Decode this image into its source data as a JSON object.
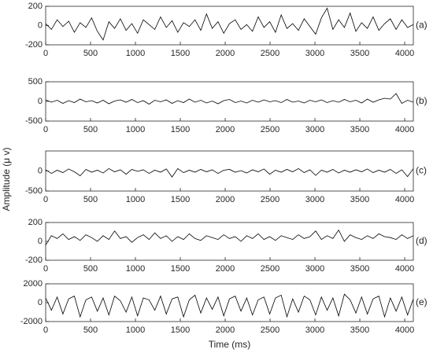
{
  "chart_data": [
    {
      "type": "line",
      "label": "(a)",
      "color": "#000000",
      "x": [
        0,
        64,
        128,
        192,
        256,
        320,
        384,
        448,
        512,
        576,
        640,
        704,
        768,
        832,
        896,
        960,
        1024,
        1088,
        1152,
        1216,
        1280,
        1344,
        1408,
        1472,
        1536,
        1600,
        1664,
        1728,
        1792,
        1856,
        1920,
        1984,
        2048,
        2112,
        2176,
        2240,
        2304,
        2368,
        2432,
        2496,
        2560,
        2624,
        2688,
        2752,
        2816,
        2880,
        2944,
        3008,
        3072,
        3136,
        3200,
        3264,
        3328,
        3392,
        3456,
        3520,
        3584,
        3648,
        3712,
        3776,
        3840,
        3904,
        3968,
        4032,
        4096
      ],
      "values": [
        20,
        -40,
        60,
        -10,
        45,
        -70,
        30,
        -20,
        80,
        -60,
        -150,
        40,
        -30,
        70,
        -50,
        20,
        -80,
        60,
        10,
        -40,
        90,
        -20,
        50,
        -70,
        30,
        -10,
        60,
        -50,
        120,
        -30,
        40,
        -80,
        20,
        60,
        -40,
        10,
        -60,
        90,
        -20,
        40,
        -70,
        110,
        -30,
        20,
        -50,
        70,
        -10,
        -90,
        80,
        180,
        -40,
        60,
        -20,
        130,
        -60,
        30,
        -30,
        90,
        -50,
        20,
        70,
        -40,
        60,
        -20,
        10
      ],
      "xlim": [
        0,
        4096
      ],
      "xticks": [
        0,
        500,
        1000,
        1500,
        2000,
        2500,
        3000,
        3500,
        4000
      ],
      "ylim": [
        -200,
        200
      ],
      "yticks": [
        -200,
        0,
        200
      ]
    },
    {
      "type": "line",
      "label": "(b)",
      "color": "#000000",
      "x": [
        0,
        64,
        128,
        192,
        256,
        320,
        384,
        448,
        512,
        576,
        640,
        704,
        768,
        832,
        896,
        960,
        1024,
        1088,
        1152,
        1216,
        1280,
        1344,
        1408,
        1472,
        1536,
        1600,
        1664,
        1728,
        1792,
        1856,
        1920,
        1984,
        2048,
        2112,
        2176,
        2240,
        2304,
        2368,
        2432,
        2496,
        2560,
        2624,
        2688,
        2752,
        2816,
        2880,
        2944,
        3008,
        3072,
        3136,
        3200,
        3264,
        3328,
        3392,
        3456,
        3520,
        3584,
        3648,
        3712,
        3776,
        3840,
        3904,
        3968,
        4032,
        4096
      ],
      "values": [
        40,
        -20,
        30,
        -50,
        20,
        -30,
        60,
        -10,
        20,
        -40,
        30,
        -60,
        10,
        40,
        -20,
        50,
        -30,
        20,
        -70,
        30,
        -10,
        40,
        -50,
        20,
        -30,
        60,
        -20,
        30,
        -40,
        10,
        -60,
        20,
        50,
        -30,
        10,
        -40,
        30,
        -20,
        40,
        -10,
        20,
        -30,
        50,
        -20,
        10,
        -40,
        30,
        -10,
        40,
        -30,
        20,
        -20,
        50,
        -10,
        30,
        -40,
        60,
        -20,
        40,
        80,
        60,
        200,
        -50,
        30,
        -20
      ],
      "xlim": [
        0,
        4096
      ],
      "xticks": [
        0,
        500,
        1000,
        1500,
        2000,
        2500,
        3000,
        3500,
        4000
      ],
      "ylim": [
        -500,
        500
      ],
      "yticks": [
        -500,
        0,
        500
      ]
    },
    {
      "type": "line",
      "label": "(c)",
      "color": "#000000",
      "ylabel": "Amplitude (μ v)",
      "x": [
        0,
        64,
        128,
        192,
        256,
        320,
        384,
        448,
        512,
        576,
        640,
        704,
        768,
        832,
        896,
        960,
        1024,
        1088,
        1152,
        1216,
        1280,
        1344,
        1408,
        1472,
        1536,
        1600,
        1664,
        1728,
        1792,
        1856,
        1920,
        1984,
        2048,
        2112,
        2176,
        2240,
        2304,
        2368,
        2432,
        2496,
        2560,
        2624,
        2688,
        2752,
        2816,
        2880,
        2944,
        3008,
        3072,
        3136,
        3200,
        3264,
        3328,
        3392,
        3456,
        3520,
        3584,
        3648,
        3712,
        3776,
        3840,
        3904,
        3968,
        4032,
        4096
      ],
      "values": [
        30,
        -60,
        20,
        -40,
        50,
        -20,
        -120,
        40,
        -30,
        20,
        -50,
        60,
        -20,
        30,
        -80,
        40,
        -10,
        30,
        -60,
        20,
        -30,
        50,
        -150,
        60,
        -40,
        20,
        -30,
        40,
        -20,
        30,
        -60,
        20,
        40,
        -30,
        10,
        -50,
        30,
        -20,
        50,
        -80,
        20,
        -30,
        40,
        -20,
        60,
        -40,
        30,
        -110,
        20,
        -30,
        40,
        -50,
        20,
        -30,
        30,
        -20,
        50,
        -40,
        20,
        -30,
        40,
        -60,
        30,
        -140,
        60
      ],
      "xlim": [
        0,
        4096
      ],
      "xticks": [
        0,
        500,
        1000,
        1500,
        2000,
        2500,
        3000,
        3500,
        4000
      ],
      "ylim": [
        -500,
        500
      ],
      "yticks": [
        -500,
        0
      ]
    },
    {
      "type": "line",
      "label": "(d)",
      "color": "#000000",
      "x": [
        0,
        64,
        128,
        192,
        256,
        320,
        384,
        448,
        512,
        576,
        640,
        704,
        768,
        832,
        896,
        960,
        1024,
        1088,
        1152,
        1216,
        1280,
        1344,
        1408,
        1472,
        1536,
        1600,
        1664,
        1728,
        1792,
        1856,
        1920,
        1984,
        2048,
        2112,
        2176,
        2240,
        2304,
        2368,
        2432,
        2496,
        2560,
        2624,
        2688,
        2752,
        2816,
        2880,
        2944,
        3008,
        3072,
        3136,
        3200,
        3264,
        3328,
        3392,
        3456,
        3520,
        3584,
        3648,
        3712,
        3776,
        3840,
        3904,
        3968,
        4032,
        4096
      ],
      "values": [
        -40,
        60,
        30,
        80,
        20,
        50,
        10,
        70,
        40,
        0,
        60,
        20,
        110,
        30,
        50,
        -10,
        40,
        70,
        20,
        90,
        30,
        60,
        0,
        50,
        20,
        80,
        30,
        10,
        60,
        40,
        20,
        70,
        30,
        50,
        0,
        60,
        30,
        80,
        20,
        50,
        10,
        60,
        40,
        20,
        70,
        30,
        50,
        110,
        20,
        60,
        30,
        120,
        0,
        70,
        40,
        20,
        60,
        30,
        80,
        50,
        40,
        20,
        70,
        30,
        60
      ],
      "xlim": [
        0,
        4096
      ],
      "xticks": [
        0,
        500,
        1000,
        1500,
        2000,
        2500,
        3000,
        3500,
        4000
      ],
      "ylim": [
        -200,
        200
      ],
      "yticks": [
        -200,
        0,
        200
      ]
    },
    {
      "type": "line",
      "label": "(e)",
      "color": "#000000",
      "xlabel": "Time (ms)",
      "x": [
        0,
        64,
        128,
        192,
        256,
        320,
        384,
        448,
        512,
        576,
        640,
        704,
        768,
        832,
        896,
        960,
        1024,
        1088,
        1152,
        1216,
        1280,
        1344,
        1408,
        1472,
        1536,
        1600,
        1664,
        1728,
        1792,
        1856,
        1920,
        1984,
        2048,
        2112,
        2176,
        2240,
        2304,
        2368,
        2432,
        2496,
        2560,
        2624,
        2688,
        2752,
        2816,
        2880,
        2944,
        3008,
        3072,
        3136,
        3200,
        3264,
        3328,
        3392,
        3456,
        3520,
        3584,
        3648,
        3712,
        3776,
        3840,
        3904,
        3968,
        4032,
        4096
      ],
      "values": [
        500,
        -800,
        600,
        -1200,
        400,
        700,
        -1500,
        300,
        600,
        -900,
        500,
        -1300,
        700,
        200,
        -1000,
        600,
        -1400,
        500,
        300,
        -800,
        700,
        -1200,
        400,
        600,
        -1500,
        300,
        800,
        -1100,
        500,
        -700,
        600,
        -1400,
        400,
        700,
        -900,
        500,
        -1300,
        300,
        600,
        -1200,
        500,
        800,
        -1500,
        400,
        -1000,
        700,
        300,
        -1300,
        600,
        -800,
        500,
        -1400,
        900,
        300,
        -1100,
        600,
        -1200,
        400,
        700,
        -1500,
        500,
        -900,
        600,
        -1300,
        400
      ],
      "xlim": [
        0,
        4096
      ],
      "xticks": [
        0,
        500,
        1000,
        1500,
        2000,
        2500,
        3000,
        3500,
        4000
      ],
      "ylim": [
        -2000,
        2000
      ],
      "yticks": [
        -2000,
        0,
        2000
      ]
    }
  ]
}
